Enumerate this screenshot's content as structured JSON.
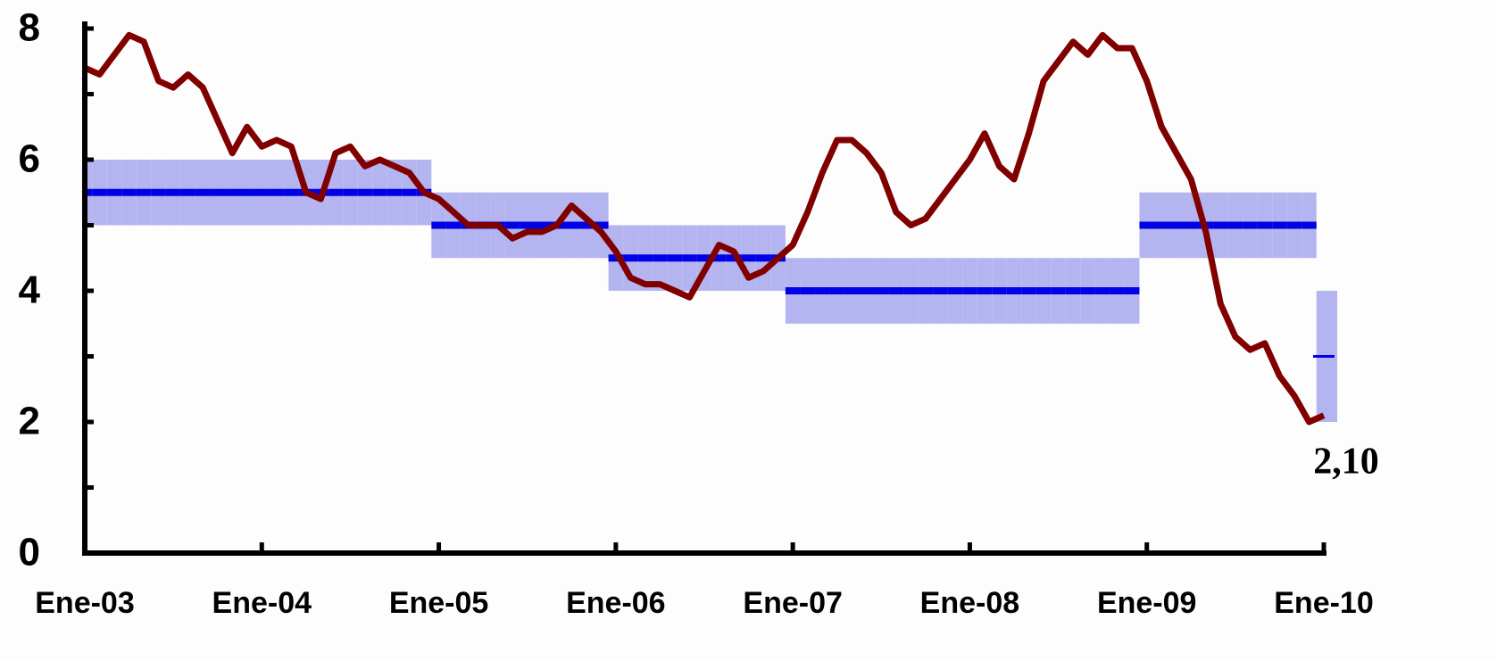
{
  "chart_data": {
    "type": "line",
    "categories": [
      "Ene-03",
      null,
      null,
      null,
      null,
      null,
      null,
      null,
      null,
      null,
      null,
      null,
      "Ene-04",
      null,
      null,
      null,
      null,
      null,
      null,
      null,
      null,
      null,
      null,
      null,
      "Ene-05",
      null,
      null,
      null,
      null,
      null,
      null,
      null,
      null,
      null,
      null,
      null,
      "Ene-06",
      null,
      null,
      null,
      null,
      null,
      null,
      null,
      null,
      null,
      null,
      null,
      "Ene-07",
      null,
      null,
      null,
      null,
      null,
      null,
      null,
      null,
      null,
      null,
      null,
      "Ene-08",
      null,
      null,
      null,
      null,
      null,
      null,
      null,
      null,
      null,
      null,
      null,
      "Ene-09",
      null,
      null,
      null,
      null,
      null,
      null,
      null,
      null,
      null,
      null,
      null,
      "Ene-10"
    ],
    "series": [
      {
        "color": "#800000",
        "values": [
          7.4,
          7.3,
          7.6,
          7.9,
          7.8,
          7.2,
          7.1,
          7.3,
          7.1,
          6.6,
          6.1,
          6.5,
          6.2,
          6.3,
          6.2,
          5.5,
          5.4,
          6.1,
          6.2,
          5.9,
          6.0,
          5.9,
          5.8,
          5.5,
          5.4,
          5.2,
          5.0,
          5.0,
          5.0,
          4.8,
          4.9,
          4.9,
          5.0,
          5.3,
          5.1,
          4.9,
          4.6,
          4.2,
          4.1,
          4.1,
          4.0,
          3.9,
          4.3,
          4.7,
          4.6,
          4.2,
          4.3,
          4.5,
          4.7,
          5.2,
          5.8,
          6.3,
          6.3,
          6.1,
          5.8,
          5.2,
          5.0,
          5.1,
          5.4,
          5.7,
          6.0,
          6.4,
          5.9,
          5.7,
          6.4,
          7.2,
          7.5,
          7.8,
          7.6,
          7.9,
          7.7,
          7.7,
          7.2,
          6.5,
          6.1,
          5.7,
          4.9,
          3.8,
          3.3,
          3.1,
          3.2,
          2.7,
          2.4,
          2.0,
          2.1
        ],
        "value_labels": [
          null,
          null,
          null,
          null,
          null,
          null,
          null,
          null,
          null,
          null,
          null,
          null,
          null,
          null,
          null,
          null,
          null,
          null,
          null,
          null,
          null,
          null,
          null,
          null,
          null,
          null,
          null,
          null,
          null,
          null,
          null,
          null,
          null,
          null,
          null,
          null,
          null,
          null,
          null,
          null,
          null,
          null,
          null,
          null,
          null,
          null,
          null,
          null,
          null,
          null,
          null,
          null,
          null,
          null,
          null,
          null,
          null,
          null,
          null,
          null,
          null,
          null,
          null,
          null,
          null,
          null,
          null,
          null,
          null,
          null,
          null,
          null,
          null,
          null,
          null,
          null,
          null,
          null,
          null,
          null,
          null,
          null,
          null,
          null,
          "2,10"
        ]
      }
    ],
    "target": {
      "color": "#0000e6",
      "values": [
        5.5,
        5.5,
        5.5,
        5.5,
        5.5,
        5.5,
        5.5,
        5.5,
        5.5,
        5.5,
        5.5,
        5.5,
        5.5,
        5.5,
        5.5,
        5.5,
        5.5,
        5.5,
        5.5,
        5.5,
        5.5,
        5.5,
        5.5,
        5.5,
        5,
        5,
        5,
        5,
        5,
        5,
        5,
        5,
        5,
        5,
        5,
        5,
        4.5,
        4.5,
        4.5,
        4.5,
        4.5,
        4.5,
        4.5,
        4.5,
        4.5,
        4.5,
        4.5,
        4.5,
        4,
        4,
        4,
        4,
        4,
        4,
        4,
        4,
        4,
        4,
        4,
        4,
        4,
        4,
        4,
        4,
        4,
        4,
        4,
        4,
        4,
        4,
        4,
        4,
        5,
        5,
        5,
        5,
        5,
        5,
        5,
        5,
        5,
        5,
        5,
        5,
        3
      ]
    },
    "band": {
      "color": "#b4b4f0",
      "low": [
        5,
        5,
        5,
        5,
        5,
        5,
        5,
        5,
        5,
        5,
        5,
        5,
        5,
        5,
        5,
        5,
        5,
        5,
        5,
        5,
        5,
        5,
        5,
        5,
        4.5,
        4.5,
        4.5,
        4.5,
        4.5,
        4.5,
        4.5,
        4.5,
        4.5,
        4.5,
        4.5,
        4.5,
        4,
        4,
        4,
        4,
        4,
        4,
        4,
        4,
        4,
        4,
        4,
        4,
        3.5,
        3.5,
        3.5,
        3.5,
        3.5,
        3.5,
        3.5,
        3.5,
        3.5,
        3.5,
        3.5,
        3.5,
        3.5,
        3.5,
        3.5,
        3.5,
        3.5,
        3.5,
        3.5,
        3.5,
        3.5,
        3.5,
        3.5,
        3.5,
        4.5,
        4.5,
        4.5,
        4.5,
        4.5,
        4.5,
        4.5,
        4.5,
        4.5,
        4.5,
        4.5,
        4.5,
        2
      ],
      "high": [
        6,
        6,
        6,
        6,
        6,
        6,
        6,
        6,
        6,
        6,
        6,
        6,
        6,
        6,
        6,
        6,
        6,
        6,
        6,
        6,
        6,
        6,
        6,
        6,
        5.5,
        5.5,
        5.5,
        5.5,
        5.5,
        5.5,
        5.5,
        5.5,
        5.5,
        5.5,
        5.5,
        5.5,
        5,
        5,
        5,
        5,
        5,
        5,
        5,
        5,
        5,
        5,
        5,
        5,
        4.5,
        4.5,
        4.5,
        4.5,
        4.5,
        4.5,
        4.5,
        4.5,
        4.5,
        4.5,
        4.5,
        4.5,
        4.5,
        4.5,
        4.5,
        4.5,
        4.5,
        4.5,
        4.5,
        4.5,
        4.5,
        4.5,
        4.5,
        4.5,
        5.5,
        5.5,
        5.5,
        5.5,
        5.5,
        5.5,
        5.5,
        5.5,
        5.5,
        5.5,
        5.5,
        5.5,
        4
      ]
    },
    "ylim": [
      0,
      8
    ],
    "yticks": [
      0,
      2,
      4,
      6,
      8
    ],
    "yminorticks": [
      1,
      3,
      5,
      7
    ]
  }
}
